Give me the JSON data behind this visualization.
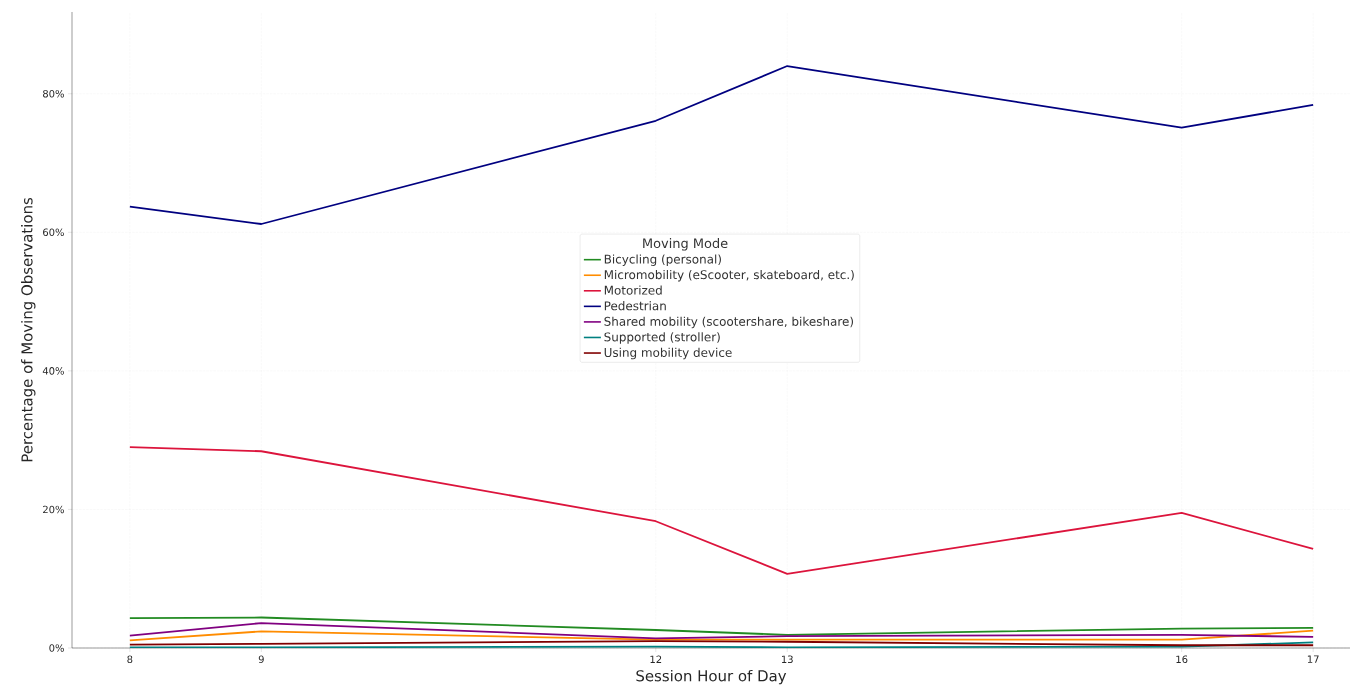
{
  "chart_data": {
    "type": "line",
    "xlabel": "Session Hour of Day",
    "ylabel": "Percentage of Moving Observations",
    "legend_title": "Moving Mode",
    "legend": "center",
    "grid": true,
    "marker": "none",
    "line_style": "solid",
    "x": [
      8,
      9,
      12,
      13,
      16,
      17
    ],
    "xlim": [
      7.56,
      17.28
    ],
    "xticks": [
      8,
      9,
      12,
      13,
      16,
      17
    ],
    "ylim": [
      0,
      91.8
    ],
    "yticks": [
      {
        "value": 0,
        "label": "0%"
      },
      {
        "value": 20,
        "label": "20%"
      },
      {
        "value": 40,
        "label": "40%"
      },
      {
        "value": 60,
        "label": "60%"
      },
      {
        "value": 80,
        "label": "80%"
      }
    ],
    "series": [
      {
        "name": "Bicycling (personal)",
        "color": "#228b22",
        "values": [
          4.3,
          4.4,
          2.6,
          1.9,
          2.8,
          2.9
        ]
      },
      {
        "name": "Micromobility (eScooter, skateboard, etc.)",
        "color": "#ff8c00",
        "values": [
          1.1,
          2.4,
          1.2,
          1.2,
          1.2,
          2.5
        ]
      },
      {
        "name": "Motorized",
        "color": "#dc143c",
        "values": [
          29.0,
          28.4,
          18.3,
          10.7,
          19.5,
          14.3
        ]
      },
      {
        "name": "Pedestrian",
        "color": "#000080",
        "values": [
          63.7,
          61.2,
          76.1,
          84.0,
          75.1,
          78.4
        ]
      },
      {
        "name": "Shared mobility (scootershare, bikeshare)",
        "color": "#800080",
        "values": [
          1.8,
          3.6,
          1.4,
          1.7,
          1.9,
          1.6
        ]
      },
      {
        "name": "Supported (stroller)",
        "color": "#008080",
        "values": [
          0.1,
          0.1,
          0.2,
          0.1,
          0.2,
          0.8
        ]
      },
      {
        "name": "Using mobility device",
        "color": "#800000",
        "values": [
          0.5,
          0.6,
          1.0,
          0.9,
          0.4,
          0.4
        ]
      }
    ]
  }
}
